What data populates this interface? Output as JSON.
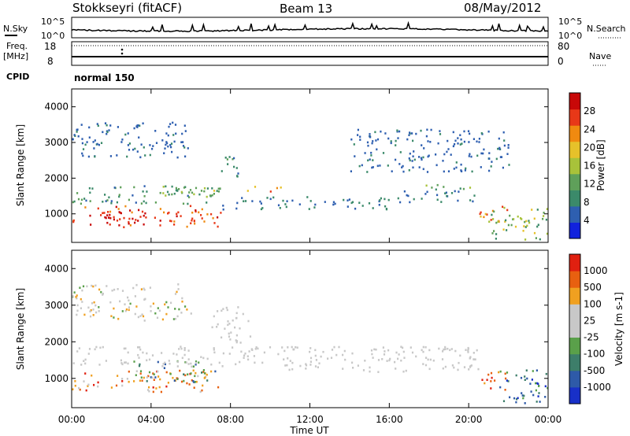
{
  "header": {
    "station": "Stokkseyri (fitACF)",
    "beam": "Beam 13",
    "date": "08/May/2012"
  },
  "panels": {
    "nsky": {
      "label": "N.Sky",
      "ticks": [
        "10^5",
        "10^0"
      ],
      "right_label": "N.Search",
      "right_ticks": [
        "10^5",
        "10^0"
      ]
    },
    "freq": {
      "label_1": "Freq.",
      "label_2": "[MHz]",
      "ticks": [
        "18",
        "8"
      ],
      "right_label": "Nave",
      "right_ticks": [
        "80",
        "0"
      ]
    },
    "cpid": {
      "label": "CPID",
      "value": "normal 150"
    }
  },
  "x_axis": {
    "label": "Time UT",
    "ticks": [
      "00:00",
      "04:00",
      "08:00",
      "12:00",
      "16:00",
      "20:00",
      "00:00"
    ]
  },
  "colors": {
    "power_scale": [
      "#1122dd",
      "#2e5fb0",
      "#3b8a6a",
      "#5fa05a",
      "#a8c23a",
      "#e6c12a",
      "#f08a10",
      "#e83818",
      "#c80808"
    ],
    "velocity_scale": [
      "#1830c8",
      "#2e5aa8",
      "#3d7e6a",
      "#5aa04a",
      "#c8c8c8",
      "#c8c8c8",
      "#f0a020",
      "#e86010",
      "#e02010"
    ],
    "ground_scatter": "#c8c8c8"
  },
  "chart_data": [
    {
      "type": "heatmap",
      "name": "power",
      "ylabel": "Slant Range [km]",
      "xlabel": "Time UT",
      "ylim": [
        200,
        4500
      ],
      "xlim_hours": [
        0,
        24
      ],
      "y_ticks": [
        1000,
        2000,
        3000,
        4000
      ],
      "colorbar": {
        "label": "Power [dB]",
        "ticks": [
          4,
          8,
          12,
          16,
          20,
          24,
          28
        ],
        "range": [
          0,
          32
        ]
      },
      "regions": [
        {
          "t": [
            0,
            7.5
          ],
          "r": [
            650,
            1250
          ],
          "level": [
            22,
            31
          ]
        },
        {
          "t": [
            0,
            7.5
          ],
          "r": [
            1300,
            1850
          ],
          "level": [
            6,
            14
          ]
        },
        {
          "t": [
            1.5,
            3.5
          ],
          "r": [
            750,
            1150
          ],
          "level": [
            26,
            31
          ]
        },
        {
          "t": [
            4.5,
            7.2
          ],
          "r": [
            1500,
            1800
          ],
          "level": [
            12,
            20
          ]
        },
        {
          "t": [
            7.5,
            8.5
          ],
          "r": [
            2000,
            2700
          ],
          "level": [
            6,
            12
          ]
        },
        {
          "t": [
            8.5,
            10.5
          ],
          "r": [
            1650,
            1800
          ],
          "level": [
            16,
            26
          ]
        },
        {
          "t": [
            7.5,
            16.5
          ],
          "r": [
            1150,
            1500
          ],
          "level": [
            4,
            10
          ]
        },
        {
          "t": [
            16.5,
            20.5
          ],
          "r": [
            1350,
            1700
          ],
          "level": [
            4,
            10
          ]
        },
        {
          "t": [
            17.5,
            20.5
          ],
          "r": [
            1700,
            1850
          ],
          "level": [
            10,
            16
          ]
        },
        {
          "t": [
            20.5,
            22
          ],
          "r": [
            700,
            1250
          ],
          "level": [
            16,
            28
          ]
        },
        {
          "t": [
            21,
            24
          ],
          "r": [
            300,
            1200
          ],
          "level": [
            8,
            20
          ]
        },
        {
          "t": [
            0,
            6
          ],
          "r": [
            2600,
            3600
          ],
          "level": [
            4,
            8
          ]
        },
        {
          "t": [
            14,
            22
          ],
          "r": [
            2200,
            3400
          ],
          "level": [
            4,
            8
          ]
        }
      ]
    },
    {
      "type": "heatmap",
      "name": "velocity",
      "ylabel": "Slant Range [km]",
      "xlabel": "Time UT",
      "ylim": [
        200,
        4500
      ],
      "xlim_hours": [
        0,
        24
      ],
      "y_ticks": [
        1000,
        2000,
        3000,
        4000
      ],
      "colorbar": {
        "label": "Velocity [m s-1]",
        "ticks": [
          "1000",
          "500",
          "100",
          "25",
          "-25",
          "-100",
          "-500",
          "-1000"
        ]
      },
      "regions": [
        {
          "t": [
            0,
            7.5
          ],
          "r": [
            650,
            1250
          ],
          "level": [
            5,
            8
          ]
        },
        {
          "t": [
            3,
            7.2
          ],
          "r": [
            900,
            1500
          ],
          "level": [
            1,
            4
          ]
        },
        {
          "t": [
            0,
            7.5
          ],
          "r": [
            1400,
            1900
          ],
          "level": [
            4,
            4
          ]
        },
        {
          "t": [
            7.5,
            20.5
          ],
          "r": [
            1200,
            1900
          ],
          "level": [
            4,
            4
          ]
        },
        {
          "t": [
            7,
            9
          ],
          "r": [
            2000,
            3000
          ],
          "level": [
            4,
            4
          ]
        },
        {
          "t": [
            20.5,
            22
          ],
          "r": [
            700,
            1200
          ],
          "level": [
            6,
            8
          ]
        },
        {
          "t": [
            21.5,
            24
          ],
          "r": [
            300,
            1300
          ],
          "level": [
            0,
            3
          ]
        },
        {
          "t": [
            0,
            6
          ],
          "r": [
            2600,
            3600
          ],
          "level": [
            3,
            6
          ]
        }
      ]
    }
  ]
}
